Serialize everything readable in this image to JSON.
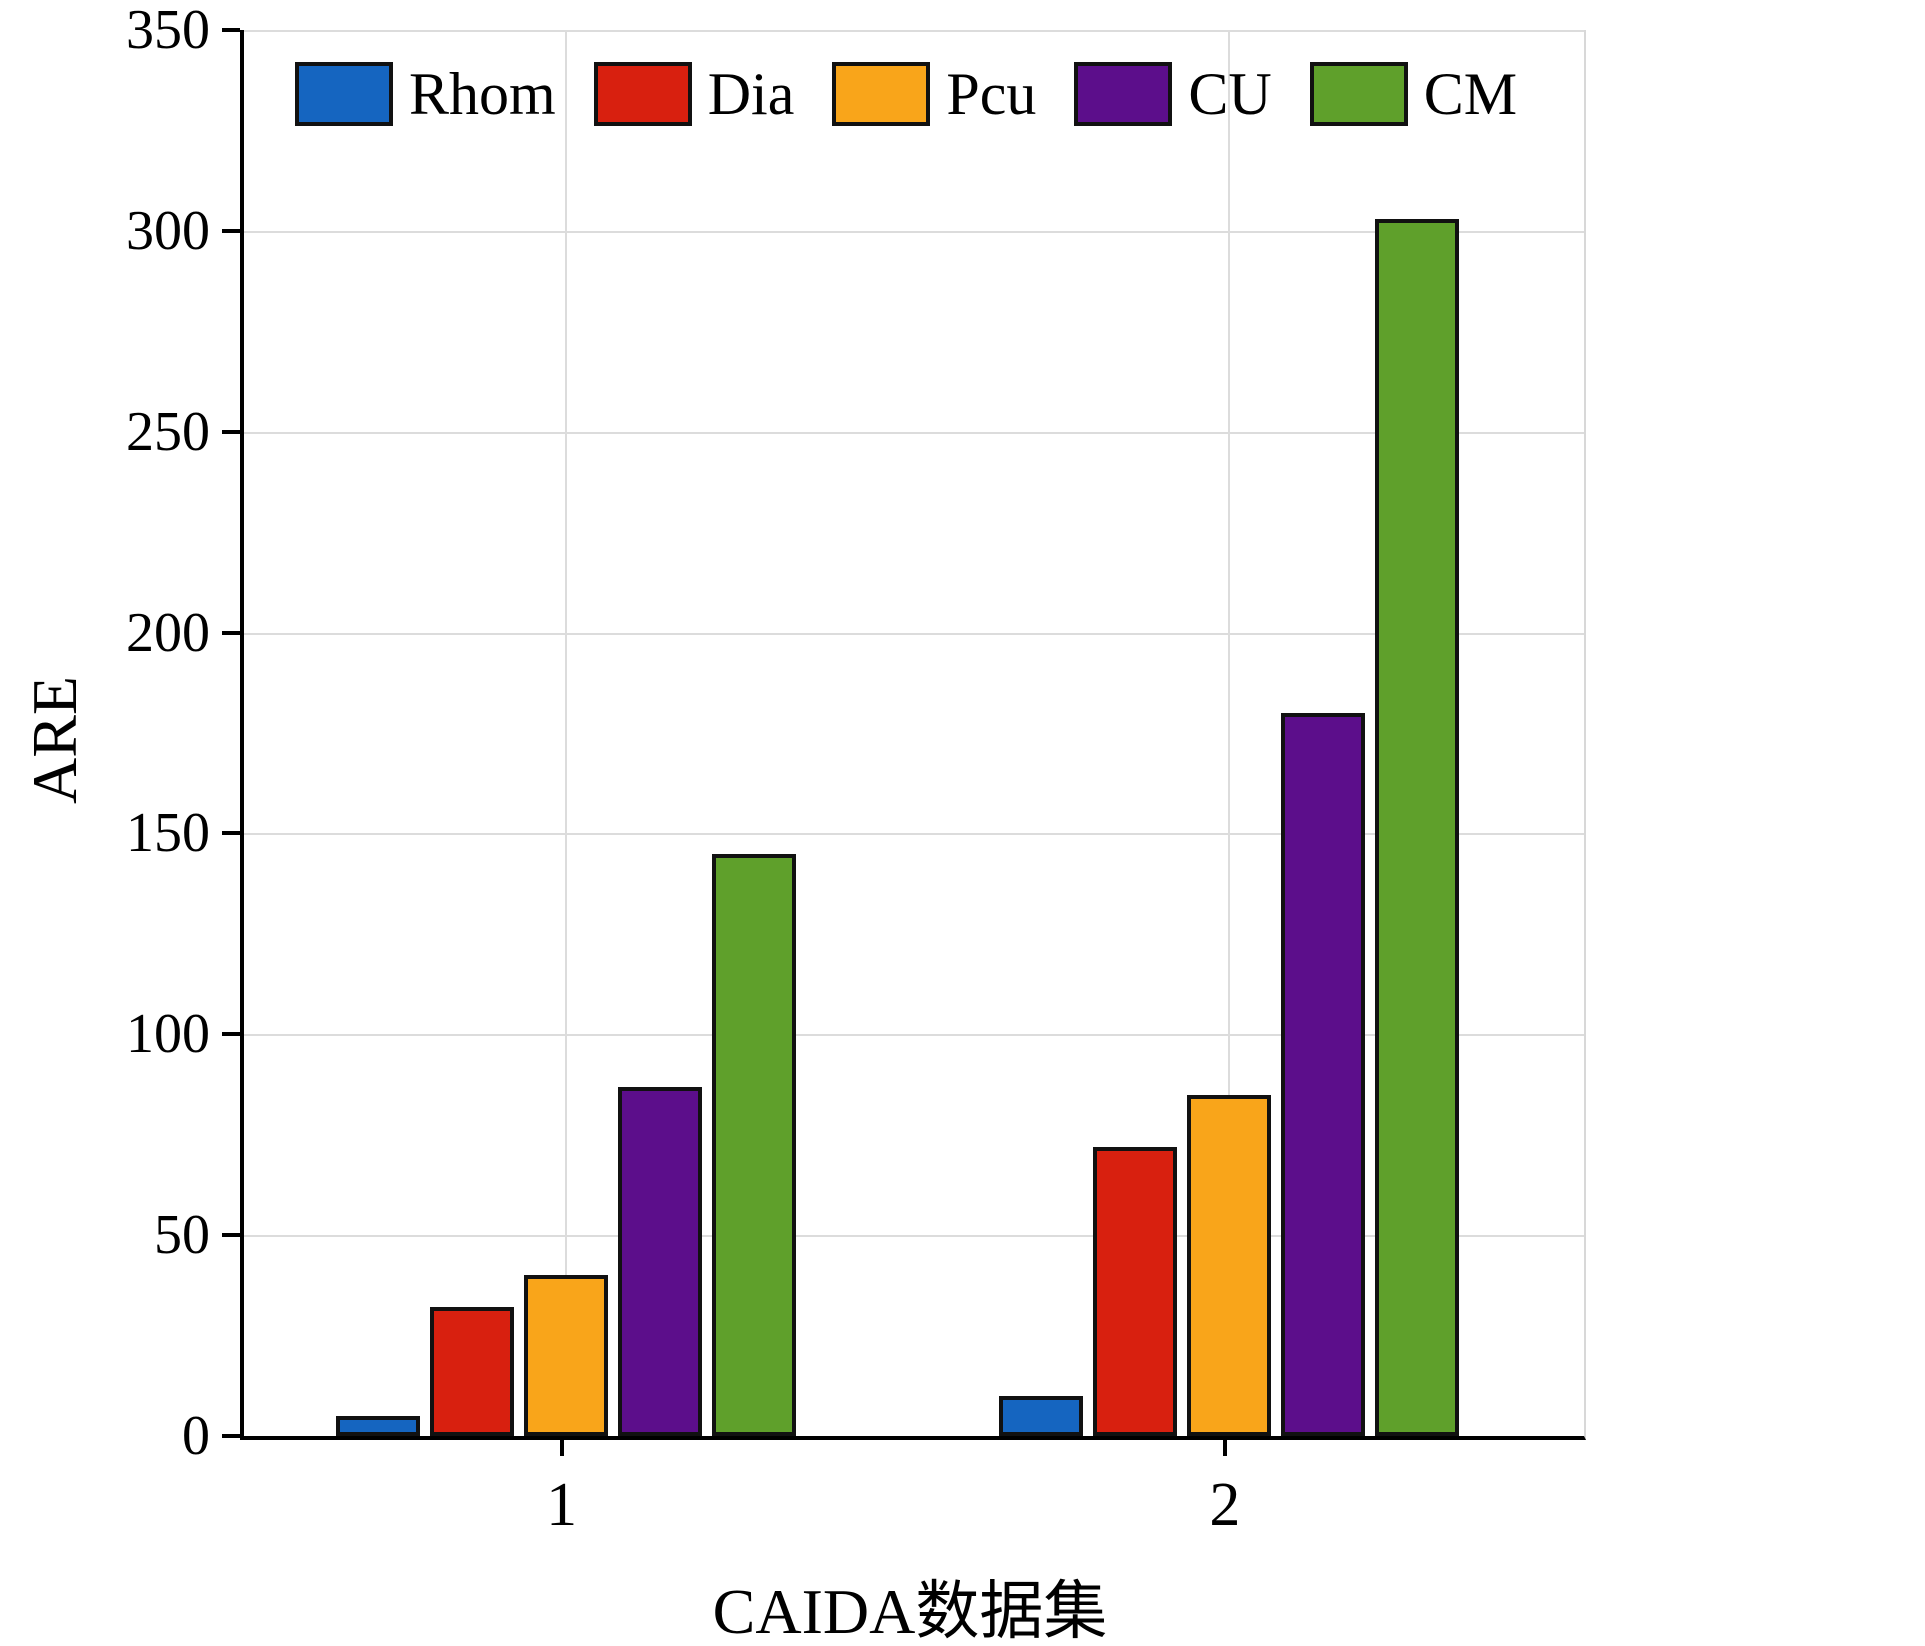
{
  "chart_data": {
    "type": "bar",
    "title": "",
    "xlabel": "CAIDA数据集",
    "ylabel": "ARE",
    "categories": [
      "1",
      "2"
    ],
    "series": [
      {
        "name": "Rhom",
        "color": "#1565c0",
        "values": [
          5,
          10
        ]
      },
      {
        "name": "Dia",
        "color": "#d8200f",
        "values": [
          32,
          72
        ]
      },
      {
        "name": "Pcu",
        "color": "#f9a51a",
        "values": [
          40,
          85
        ]
      },
      {
        "name": "CU",
        "color": "#5c0e8b",
        "values": [
          87,
          180
        ]
      },
      {
        "name": "CM",
        "color": "#5fa02b",
        "values": [
          145,
          303
        ]
      }
    ],
    "ylim": [
      0,
      350
    ],
    "yticks": [
      0,
      50,
      100,
      150,
      200,
      250,
      300,
      350
    ],
    "grid": true,
    "legend_position": "top-inside"
  }
}
